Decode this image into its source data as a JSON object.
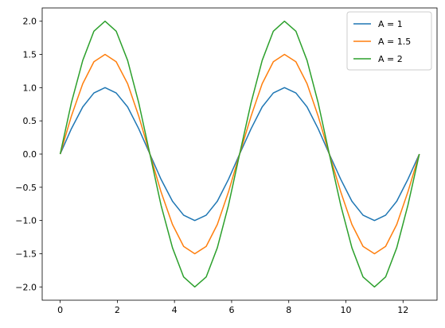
{
  "chart_data": {
    "type": "line",
    "x": [
      0,
      0.39,
      0.79,
      1.18,
      1.57,
      1.96,
      2.36,
      2.75,
      3.14,
      3.53,
      3.93,
      4.32,
      4.71,
      5.11,
      5.5,
      5.89,
      6.28,
      6.68,
      7.07,
      7.46,
      7.85,
      8.25,
      8.64,
      9.03,
      9.42,
      9.82,
      10.21,
      10.6,
      11,
      11.39,
      11.78,
      12.17,
      12.57
    ],
    "series": [
      {
        "name": "A = 1",
        "color": "#1f77b4",
        "values": [
          0,
          0.38,
          0.71,
          0.92,
          1,
          0.92,
          0.71,
          0.38,
          0,
          -0.38,
          -0.71,
          -0.92,
          -1,
          -0.92,
          -0.71,
          -0.38,
          0,
          0.38,
          0.71,
          0.92,
          1,
          0.92,
          0.71,
          0.38,
          0,
          -0.38,
          -0.71,
          -0.92,
          -1,
          -0.92,
          -0.71,
          -0.38,
          0
        ]
      },
      {
        "name": "A = 1.5",
        "color": "#ff7f0e",
        "values": [
          0,
          0.57,
          1.06,
          1.39,
          1.5,
          1.39,
          1.06,
          0.57,
          0,
          -0.57,
          -1.06,
          -1.39,
          -1.5,
          -1.39,
          -1.06,
          -0.57,
          0,
          0.57,
          1.06,
          1.39,
          1.5,
          1.39,
          1.06,
          0.57,
          0,
          -0.57,
          -1.06,
          -1.39,
          -1.5,
          -1.39,
          -1.06,
          -0.57,
          0
        ]
      },
      {
        "name": "A = 2",
        "color": "#2ca02c",
        "values": [
          0,
          0.77,
          1.41,
          1.85,
          2,
          1.85,
          1.41,
          0.77,
          0,
          -0.77,
          -1.41,
          -1.85,
          -2,
          -1.85,
          -1.41,
          -0.77,
          0,
          0.77,
          1.41,
          1.85,
          2,
          1.85,
          1.41,
          0.77,
          0,
          -0.77,
          -1.41,
          -1.85,
          -2,
          -1.85,
          -1.41,
          -0.77,
          0
        ]
      }
    ],
    "xlim": [
      -0.63,
      13.19
    ],
    "ylim": [
      -2.2,
      2.2
    ],
    "xticks": [
      0,
      2,
      4,
      6,
      8,
      10,
      12
    ],
    "yticks": [
      {
        "value": -2,
        "label": "−2.0"
      },
      {
        "value": -1.5,
        "label": "−1.5"
      },
      {
        "value": -1,
        "label": "−1.0"
      },
      {
        "value": -0.5,
        "label": "−0.5"
      },
      {
        "value": 0,
        "label": "0.0"
      },
      0.5,
      {
        "value": 1,
        "label": "1.0"
      },
      1.5,
      {
        "value": 2,
        "label": "2.0"
      }
    ],
    "legend": "upper right"
  }
}
